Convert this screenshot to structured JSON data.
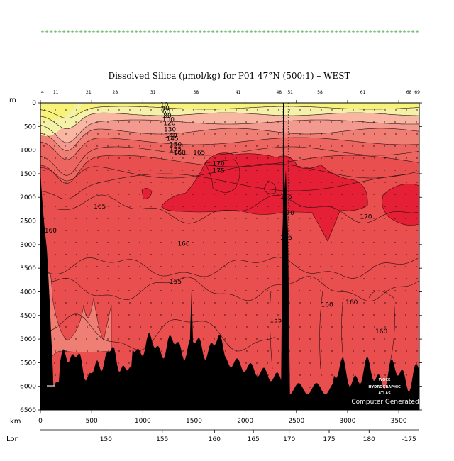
{
  "chart_data": {
    "type": "heatmap",
    "title": "Dissolved Silica (μmol/kg) for P01 47°N (500:1) – WEST",
    "ylabel": "m",
    "xlabel": "km",
    "lon_label": "Lon",
    "xlim": [
      0,
      3700
    ],
    "ylim": [
      0,
      6500
    ],
    "y_inverted": true,
    "y_ticks": [
      0,
      500,
      1000,
      1500,
      2000,
      2500,
      3000,
      3500,
      4000,
      4500,
      5000,
      5500,
      6000,
      6500
    ],
    "x_ticks": [
      0,
      500,
      1000,
      1500,
      2000,
      2500,
      3000,
      3500
    ],
    "lon_ticks": [
      {
        "km": 640,
        "label": "150"
      },
      {
        "km": 1190,
        "label": "155"
      },
      {
        "km": 1700,
        "label": "160"
      },
      {
        "km": 2080,
        "label": "165"
      },
      {
        "km": 2430,
        "label": "170"
      },
      {
        "km": 2820,
        "label": "175"
      },
      {
        "km": 3210,
        "label": "180"
      },
      {
        "km": 3600,
        "label": "-175"
      }
    ],
    "station_labels": [
      {
        "km": 20,
        "label": "4"
      },
      {
        "km": 150,
        "label": "11"
      },
      {
        "km": 470,
        "label": "21"
      },
      {
        "km": 730,
        "label": "28"
      },
      {
        "km": 1100,
        "label": "31"
      },
      {
        "km": 1520,
        "label": "38"
      },
      {
        "km": 1930,
        "label": "41"
      },
      {
        "km": 2330,
        "label": "48"
      },
      {
        "km": 2440,
        "label": "51"
      },
      {
        "km": 2730,
        "label": "58"
      },
      {
        "km": 3150,
        "label": "61"
      },
      {
        "km": 3600,
        "label": "68"
      },
      {
        "km": 3680,
        "label": "69"
      }
    ],
    "contour_labels": [
      {
        "km": 1210,
        "depth": 40,
        "label": "10"
      },
      {
        "km": 1220,
        "depth": 110,
        "label": "40"
      },
      {
        "km": 1230,
        "depth": 190,
        "label": "60"
      },
      {
        "km": 1240,
        "depth": 270,
        "label": "80"
      },
      {
        "km": 1250,
        "depth": 350,
        "label": "100"
      },
      {
        "km": 1260,
        "depth": 430,
        "label": "120"
      },
      {
        "km": 1265,
        "depth": 560,
        "label": "130"
      },
      {
        "km": 1275,
        "depth": 690,
        "label": "140"
      },
      {
        "km": 1290,
        "depth": 760,
        "label": "145"
      },
      {
        "km": 1320,
        "depth": 880,
        "label": "150"
      },
      {
        "km": 1320,
        "depth": 980,
        "label": "155"
      },
      {
        "km": 1360,
        "depth": 1050,
        "label": "160"
      },
      {
        "km": 1550,
        "depth": 1050,
        "label": "165"
      },
      {
        "km": 1740,
        "depth": 1280,
        "label": "170"
      },
      {
        "km": 1740,
        "depth": 1430,
        "label": "175"
      },
      {
        "km": 580,
        "depth": 2190,
        "label": "165"
      },
      {
        "km": 100,
        "depth": 2700,
        "label": "160"
      },
      {
        "km": 1400,
        "depth": 2980,
        "label": "160"
      },
      {
        "km": 1320,
        "depth": 3780,
        "label": "155"
      },
      {
        "km": 2400,
        "depth": 1980,
        "label": "175"
      },
      {
        "km": 2420,
        "depth": 2330,
        "label": "170"
      },
      {
        "km": 2400,
        "depth": 2850,
        "label": "165"
      },
      {
        "km": 2300,
        "depth": 4600,
        "label": "155"
      },
      {
        "km": 2800,
        "depth": 4270,
        "label": "160"
      },
      {
        "km": 3040,
        "depth": 4220,
        "label": "160"
      },
      {
        "km": 3330,
        "depth": 4830,
        "label": "160"
      },
      {
        "km": 3180,
        "depth": 2410,
        "label": "170"
      }
    ],
    "colors": {
      "yellow": "#f7f37a",
      "pale_yellow": "#f4f1a8",
      "pink_light": "#f7b7a3",
      "pink": "#f29a90",
      "salmon": "#ef7f74",
      "red_light": "#ec6560",
      "red": "#ea4f4f",
      "red_mid": "#e83f45",
      "red_deep": "#e51f35",
      "bathymetry": "#000000",
      "below_range": "#c4c4c4"
    },
    "watermark_lines": [
      "WOCE",
      "HYDROGRAPHIC",
      "ATLAS"
    ],
    "credit": "Computer Generated"
  }
}
